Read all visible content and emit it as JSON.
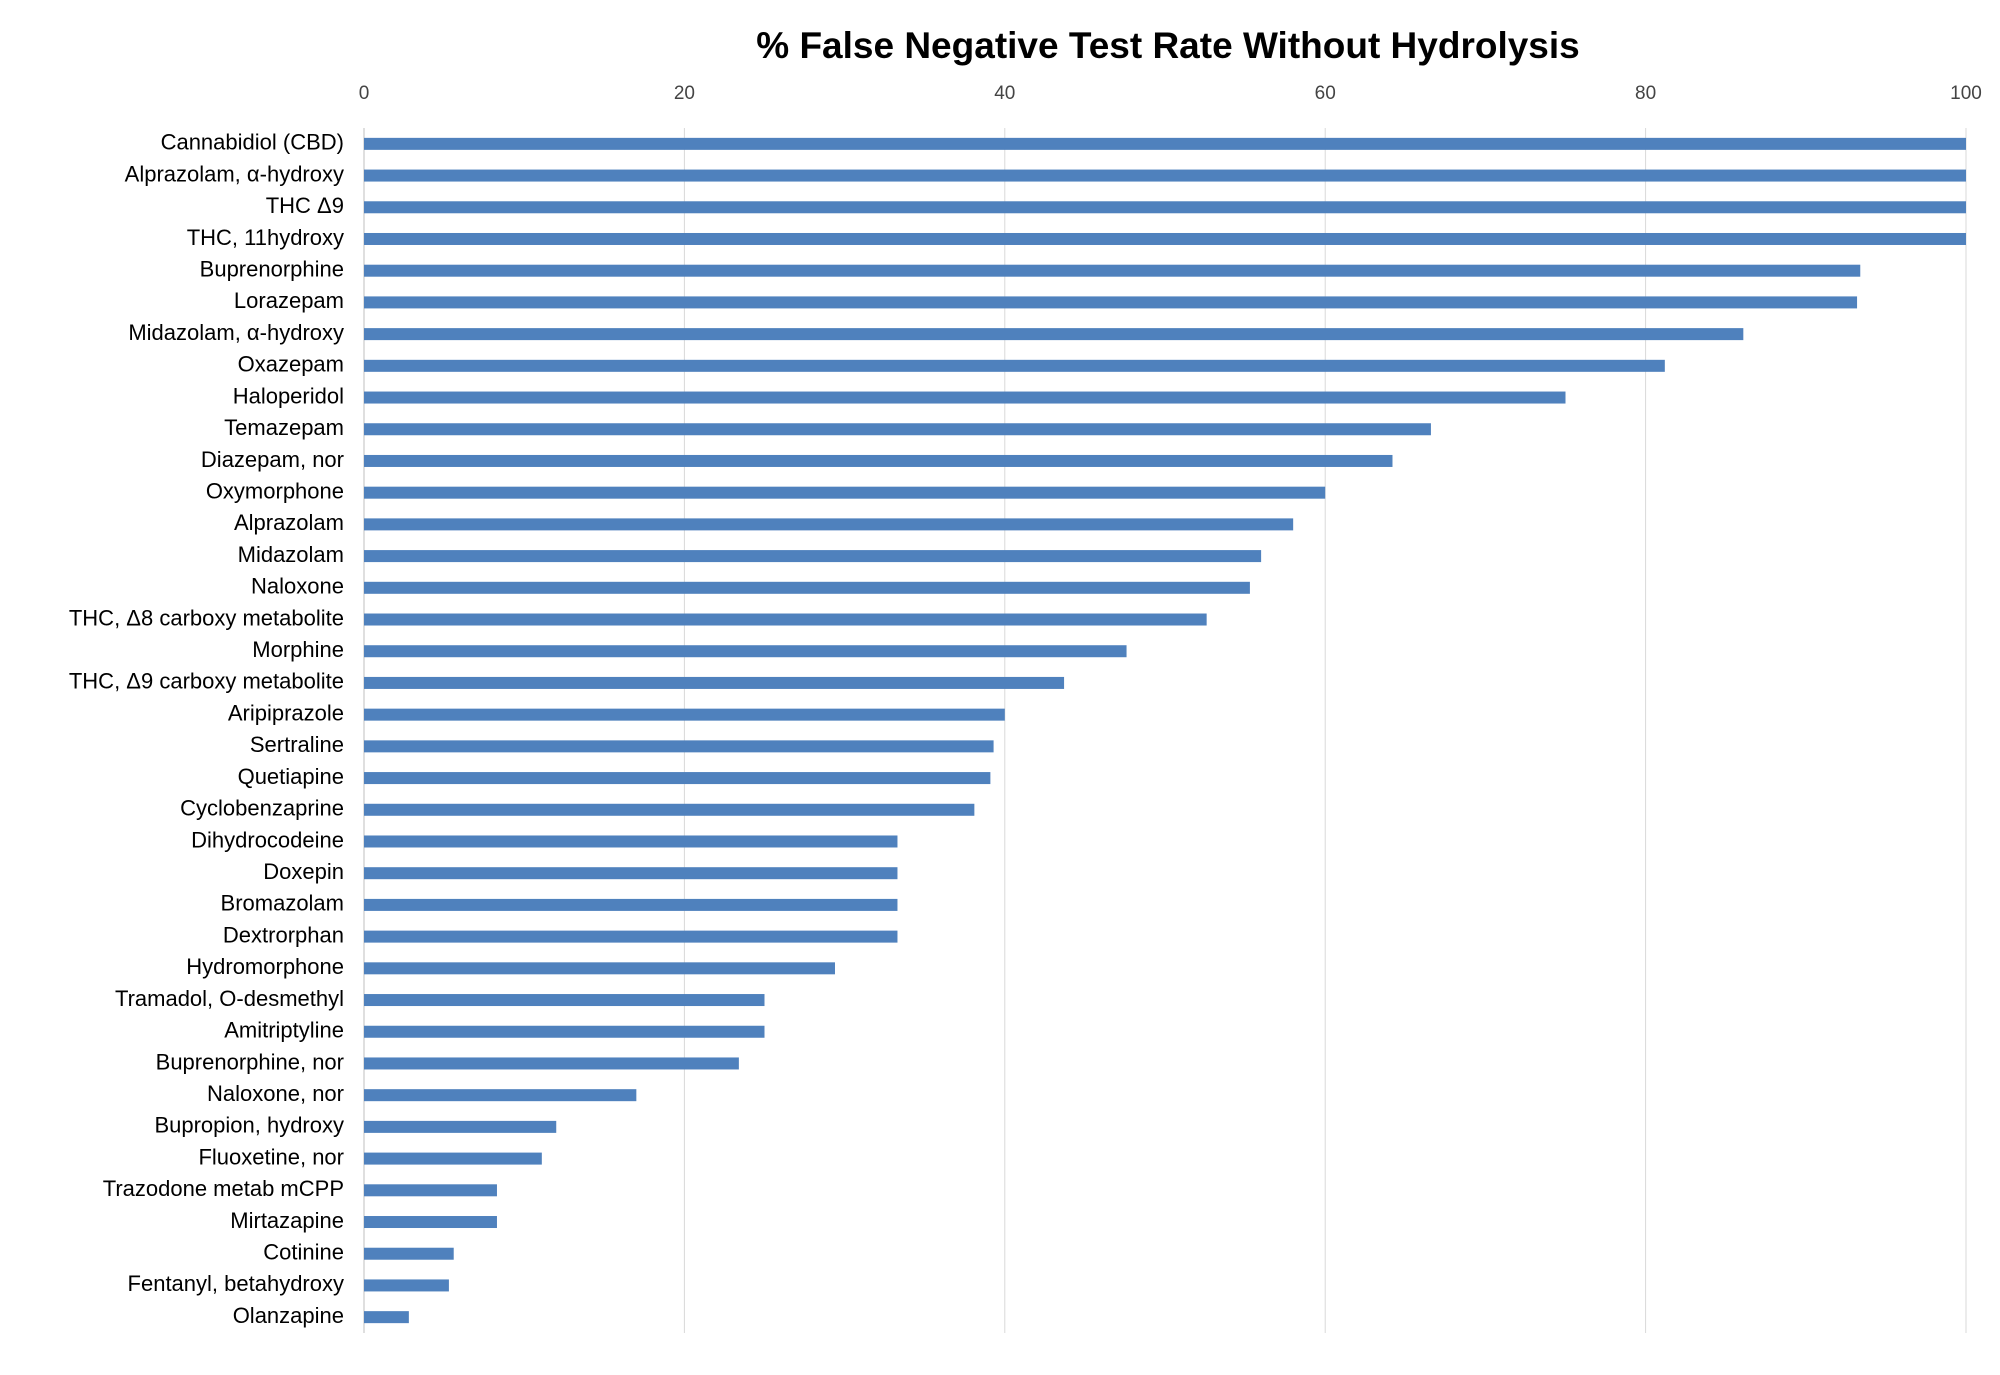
{
  "chart_data": {
    "type": "bar",
    "orientation": "horizontal",
    "title": "% False Negative Test Rate Without Hydrolysis",
    "categories": [
      "Cannabidiol (CBD)",
      "Alprazolam, α-hydroxy",
      "THC Δ9",
      "THC, 11hydroxy",
      "Buprenorphine",
      "Lorazepam",
      "Midazolam, α-hydroxy",
      "Oxazepam",
      "Haloperidol",
      "Temazepam",
      "Diazepam, nor",
      "Oxymorphone",
      "Alprazolam",
      "Midazolam",
      "Naloxone",
      "THC, Δ8 carboxy metabolite",
      "Morphine",
      "THC, Δ9 carboxy metabolite",
      "Aripiprazole",
      "Sertraline",
      "Quetiapine",
      "Cyclobenzaprine",
      "Dihydrocodeine",
      "Doxepin",
      "Bromazolam",
      "Dextrorphan",
      "Hydromorphone",
      "Tramadol, O-desmethyl",
      "Amitriptyline",
      "Buprenorphine, nor",
      "Naloxone, nor",
      "Bupropion, hydroxy",
      "Fluoxetine, nor",
      "Trazodone metab mCPP",
      "Mirtazapine",
      "Cotinine",
      "Fentanyl, betahydroxy",
      "Olanzapine"
    ],
    "values": [
      100,
      100,
      100,
      100,
      93.4,
      93.2,
      86.1,
      81.2,
      75.0,
      66.6,
      64.2,
      60,
      58,
      56,
      55.3,
      52.6,
      47.6,
      43.7,
      40,
      39.3,
      39.1,
      38.1,
      33.3,
      33.3,
      33.3,
      33.3,
      29.4,
      25.0,
      25.0,
      23.4,
      17.0,
      12,
      11.1,
      8.3,
      8.3,
      5.6,
      5.3,
      2.8
    ],
    "color": "#4f81bd",
    "xlim": [
      0,
      100
    ],
    "xticks": [
      0,
      20,
      40,
      60,
      80,
      100
    ],
    "grid": true
  }
}
